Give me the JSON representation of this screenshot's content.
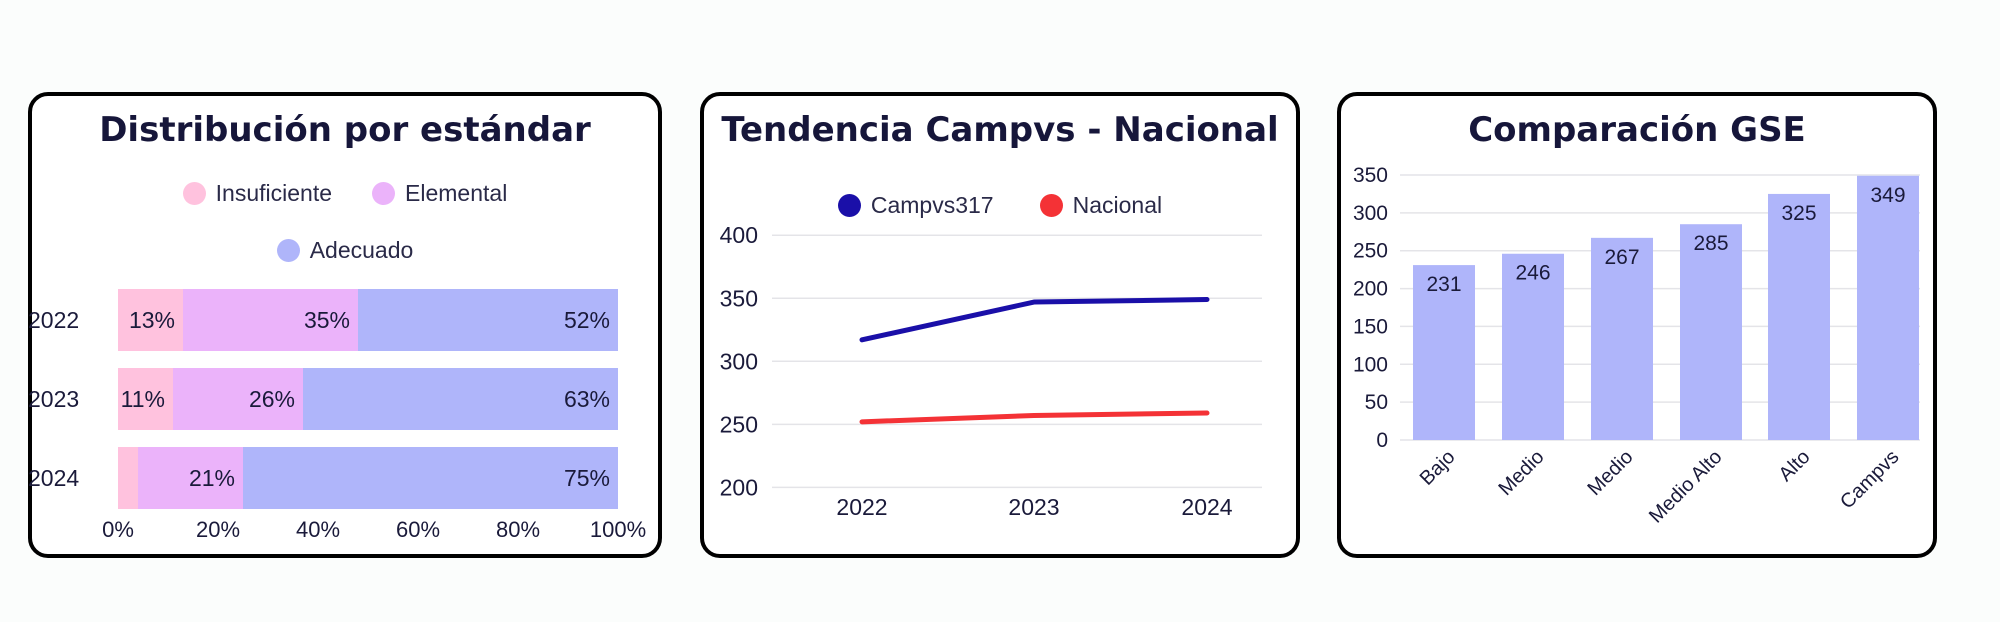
{
  "colors": {
    "insuficiente": "#ffc2de",
    "elemental": "#ebb3fa",
    "adecuado": "#afb5fa",
    "campvs": "#1a0fa8",
    "nacional": "#f43236",
    "gse_bar": "#afb5fa"
  },
  "chart_data": [
    {
      "type": "bar",
      "orientation": "horizontal",
      "stacked": true,
      "title": "Distribución por estándar",
      "categories": [
        "2022",
        "2023",
        "2024"
      ],
      "series": [
        {
          "name": "Insuficiente",
          "values": [
            13,
            11,
            4
          ],
          "labels": [
            "13%",
            "11%",
            ""
          ]
        },
        {
          "name": "Elemental",
          "values": [
            35,
            26,
            21
          ],
          "labels": [
            "35%",
            "26%",
            "21%"
          ]
        },
        {
          "name": "Adecuado",
          "values": [
            52,
            63,
            75
          ],
          "labels": [
            "52%",
            "63%",
            "75%"
          ]
        }
      ],
      "xlim": [
        0,
        100
      ],
      "xticks": [
        "0%",
        "20%",
        "40%",
        "60%",
        "80%",
        "100%"
      ],
      "legend_position": "top",
      "grid": false
    },
    {
      "type": "line",
      "title": "Tendencia Campvs - Nacional",
      "x": [
        "2022",
        "2023",
        "2024"
      ],
      "series": [
        {
          "name": "Campvs317",
          "values": [
            317,
            347,
            349
          ]
        },
        {
          "name": "Nacional",
          "values": [
            252,
            257,
            259
          ]
        }
      ],
      "ylim": [
        190,
        420
      ],
      "yticks": [
        "200",
        "250",
        "300",
        "350",
        "400"
      ],
      "legend_position": "top",
      "grid": true
    },
    {
      "type": "bar",
      "title": "Comparación GSE",
      "categories": [
        "Bajo",
        "Medio",
        "Medio",
        "Medio Alto",
        "Alto",
        "Campvs"
      ],
      "values": [
        231,
        246,
        267,
        285,
        325,
        349
      ],
      "value_labels": [
        "231",
        "246",
        "267",
        "285",
        "325",
        "349"
      ],
      "ylim": [
        0,
        350
      ],
      "yticks": [
        "0",
        "50",
        "100",
        "150",
        "200",
        "250",
        "300",
        "350"
      ],
      "grid": true
    }
  ]
}
